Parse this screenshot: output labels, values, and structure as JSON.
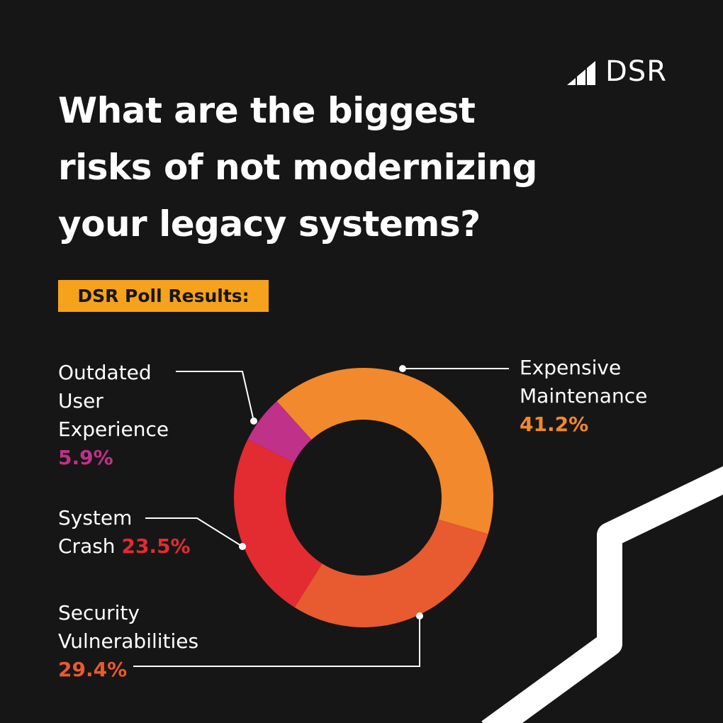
{
  "brand": {
    "name": "DSR"
  },
  "title_lines": [
    "What are the biggest",
    "risks of not modernizing",
    "your legacy systems?"
  ],
  "badge": "DSR Poll Results:",
  "chart_data": {
    "type": "pie",
    "variant": "donut",
    "categories": [
      "Expensive Maintenance",
      "Security Vulnerabilities",
      "System Crash",
      "Outdated User Experience"
    ],
    "values": [
      41.2,
      29.4,
      23.5,
      5.9
    ],
    "value_labels": [
      "41.2%",
      "29.4%",
      "23.5%",
      "5.9%"
    ],
    "colors": [
      "#f2892c",
      "#e85a2f",
      "#e22c31",
      "#c0318a"
    ],
    "callouts": {
      "expensive_maintenance": {
        "lines": [
          "Expensive",
          "Maintenance"
        ],
        "pct": "41.2%"
      },
      "outdated_user_experience": {
        "lines": [
          "Outdated",
          "User",
          "Experience"
        ],
        "pct": "5.9%"
      },
      "system_crash": {
        "lines": [
          "System",
          "Crash"
        ],
        "pct": "23.5%"
      },
      "security_vulnerabilities": {
        "lines": [
          "Security",
          "Vulnerabilities"
        ],
        "pct": "29.4%"
      }
    }
  }
}
